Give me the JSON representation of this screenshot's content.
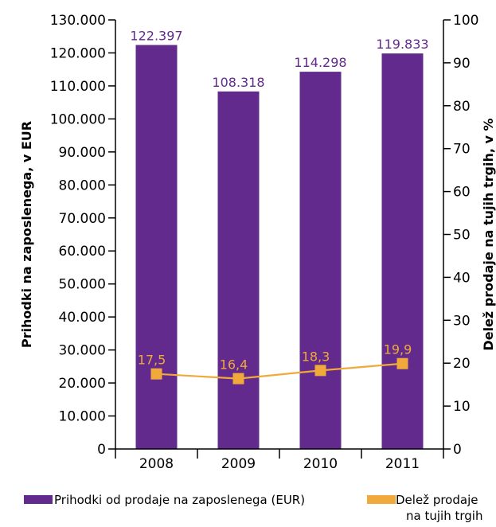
{
  "chart_data": {
    "type": "bar",
    "categories": [
      "2008",
      "2009",
      "2010",
      "2011"
    ],
    "series": [
      {
        "name": "Prihodki od prodaje na zaposlenega (EUR)",
        "type": "bar",
        "axis": "left",
        "color": "#622a8c",
        "values": [
          122397,
          108318,
          114298,
          119833
        ],
        "labels": [
          "122.397",
          "108.318",
          "114.298",
          "119.833"
        ]
      },
      {
        "name": "Delež prodaje na tujih trgih",
        "type": "line",
        "axis": "right",
        "color": "#f0a93a",
        "values": [
          17.5,
          16.4,
          18.3,
          19.9
        ],
        "labels": [
          "17,5",
          "16,4",
          "18,3",
          "19,9"
        ]
      }
    ],
    "ylabel": "Prihodki na zaposlenega, v EUR",
    "y2label": "Delež prodaje na tujih trgih, v %",
    "ylim": [
      0,
      130000
    ],
    "y2lim": [
      0,
      100
    ],
    "yticks": [
      "0",
      "10.000",
      "20.000",
      "30.000",
      "40.000",
      "50.000",
      "60.000",
      "70.000",
      "80.000",
      "90.000",
      "100.000",
      "110.000",
      "120.000",
      "130.000"
    ],
    "y2ticks": [
      "0",
      "10",
      "20",
      "30",
      "40",
      "50",
      "60",
      "70",
      "80",
      "90",
      "100"
    ],
    "legend_position": "bottom",
    "grid": false
  },
  "legend": {
    "bars_label": "Prihodki od prodaje na zaposlenega (EUR)",
    "line_label_line1": "Delež prodaje",
    "line_label_line2": "na tujih trgih"
  }
}
